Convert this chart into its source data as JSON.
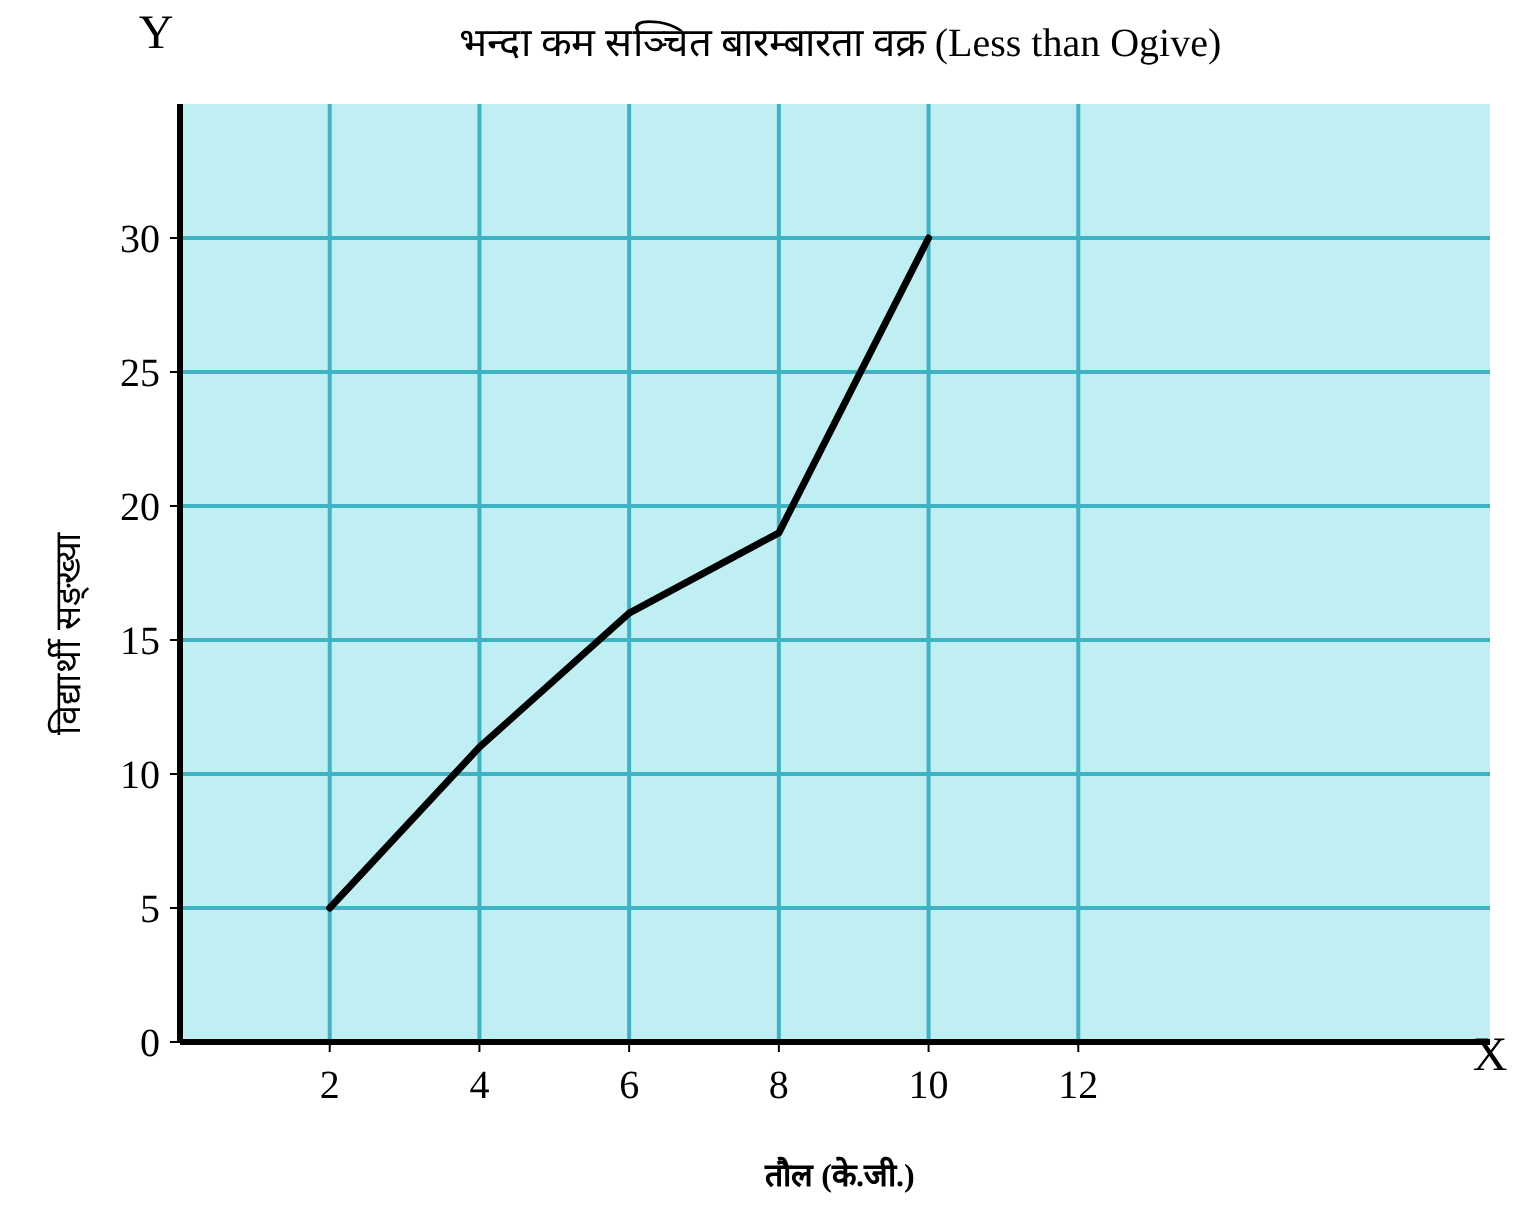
{
  "chart_data": {
    "type": "line",
    "title": "भन्दा कम सञ्चित बारम्बारता वक्र (Less than Ogive)",
    "xlabel": "तौल (के.जी.)",
    "ylabel": "विद्यार्थी सङ्ख्या",
    "annotations": [
      "Y",
      "X"
    ],
    "x": [
      2,
      4,
      6,
      8,
      10
    ],
    "series": [
      {
        "color": "#000000",
        "values": [
          5,
          11,
          16,
          19,
          30
        ]
      }
    ],
    "xlim": [
      0,
      17.5
    ],
    "ylim": [
      0,
      35
    ],
    "xticks": [
      2,
      4,
      6,
      8,
      10,
      12
    ],
    "yticks": [
      0,
      5,
      10,
      15,
      20,
      25,
      30
    ],
    "grid": true,
    "marker": "none",
    "line_style": "solid"
  }
}
